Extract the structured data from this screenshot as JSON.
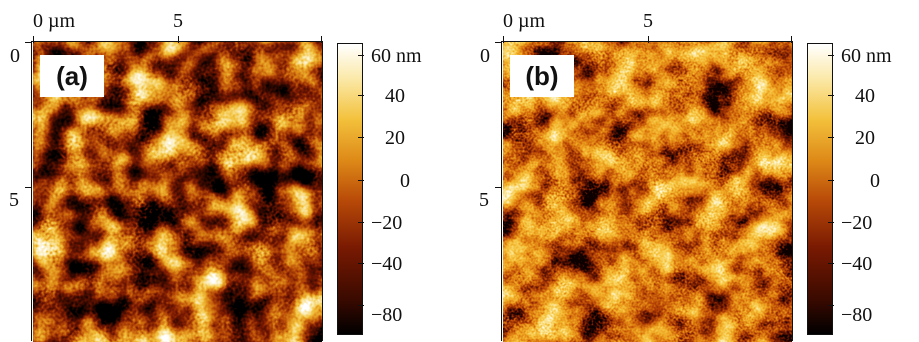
{
  "panels": [
    {
      "id": "a",
      "label": "(a)",
      "x_axis": {
        "zero": "0 µm",
        "mid": "5"
      },
      "y_axis": {
        "zero": "0",
        "mid": "5"
      },
      "colorbar": {
        "ticks": [
          "60 nm",
          "40",
          "20",
          "0",
          "−20",
          "−40",
          "−80"
        ]
      },
      "texture": {
        "seed": 3,
        "grain_size": "medium",
        "contrast": "high"
      }
    },
    {
      "id": "b",
      "label": "(b)",
      "x_axis": {
        "zero": "0 µm",
        "mid": "5"
      },
      "y_axis": {
        "zero": "0",
        "mid": "5"
      },
      "colorbar": {
        "ticks": [
          "60 nm",
          "40",
          "20",
          "0",
          "−20",
          "−40",
          "−80"
        ]
      },
      "texture": {
        "seed": 11,
        "grain_size": "medium",
        "contrast": "medium"
      }
    }
  ],
  "colormap": [
    "#000000",
    "#3a0a00",
    "#7a1a02",
    "#b84a08",
    "#de8a18",
    "#f3c13c",
    "#fbe9a8",
    "#ffffff"
  ]
}
